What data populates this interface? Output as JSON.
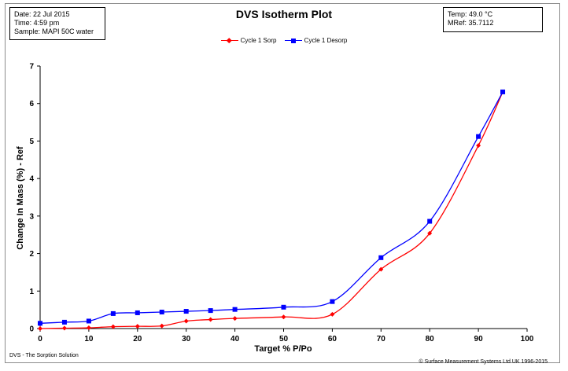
{
  "header": {
    "info_left": [
      "Date:  22 Jul 2015",
      "Time:  4:59 pm",
      "Sample:  MAPI 50C water"
    ],
    "info_right": [
      "Temp:  49.0 °C",
      "MRef:  35.7112"
    ]
  },
  "footer": {
    "left": "DVS - The Sorption Solution",
    "right": "© Surface Measurement Systems Ltd UK 1996-2015"
  },
  "chart_data": {
    "type": "line",
    "title": "DVS Isotherm Plot",
    "xlabel": "Target %  P/Po",
    "ylabel": "Change In Mass (%)  - Ref",
    "xlim": [
      0,
      100
    ],
    "ylim": [
      0,
      7
    ],
    "xticks": [
      0,
      10,
      20,
      30,
      40,
      50,
      60,
      70,
      80,
      90,
      100
    ],
    "yticks": [
      0,
      1,
      2,
      3,
      4,
      5,
      6,
      7
    ],
    "grid": false,
    "legend_position": "top-center",
    "series": [
      {
        "name": "Cycle 1 Sorp",
        "color": "#ff0000",
        "marker": "diamond",
        "x": [
          0,
          5,
          10,
          15,
          20,
          25,
          30,
          35,
          40,
          50,
          60,
          70,
          80,
          90,
          95
        ],
        "y": [
          0.0,
          0.01,
          0.02,
          0.05,
          0.06,
          0.07,
          0.2,
          0.24,
          0.27,
          0.31,
          0.38,
          1.58,
          2.54,
          4.88,
          6.31
        ]
      },
      {
        "name": "Cycle 1 Desorp",
        "color": "#0000ff",
        "marker": "square",
        "x": [
          0,
          5,
          10,
          15,
          20,
          25,
          30,
          35,
          40,
          50,
          60,
          70,
          80,
          90,
          95
        ],
        "y": [
          0.14,
          0.17,
          0.2,
          0.4,
          0.42,
          0.44,
          0.46,
          0.48,
          0.51,
          0.57,
          0.72,
          1.89,
          2.86,
          5.12,
          6.31
        ]
      }
    ]
  }
}
